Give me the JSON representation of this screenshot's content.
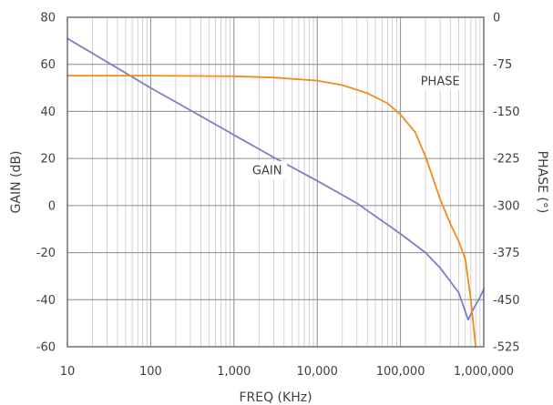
{
  "chart_data": {
    "type": "line",
    "title": "",
    "xlabel": "FREQ (KHz)",
    "ylabel": "GAIN (dB)",
    "y2label": "PHASE (°)",
    "xscale": "log",
    "xlim": [
      10,
      1000000
    ],
    "ylim": [
      -60,
      80
    ],
    "y2lim": [
      -525,
      0
    ],
    "grid": true,
    "xticks": [
      10,
      100,
      1000,
      10000,
      100000,
      1000000
    ],
    "xtick_labels": [
      "10",
      "100",
      "1,000",
      "10,000",
      "100,000",
      "1,000,000"
    ],
    "yticks": [
      -60,
      -40,
      -20,
      0,
      20,
      40,
      60,
      80
    ],
    "ytick_labels": [
      "-60",
      "-40",
      "-20",
      "0",
      "20",
      "40",
      "60",
      "80"
    ],
    "y2ticks": [
      -525,
      -450,
      -375,
      -300,
      -225,
      -150,
      -75,
      0
    ],
    "y2tick_labels": [
      "-525",
      "-450",
      "-375",
      "-300",
      "-225",
      "-150",
      "-75",
      "0"
    ],
    "series": [
      {
        "name": "GAIN",
        "axis": "left",
        "color": "#7b7fc4",
        "x": [
          10,
          30,
          100,
          300,
          1000,
          3000,
          10000,
          30000,
          100000,
          200000,
          300000,
          500000,
          650000,
          750000,
          900000,
          1000000
        ],
        "y": [
          71,
          61,
          50,
          40.5,
          30,
          20.5,
          10.5,
          1,
          -12,
          -20,
          -26.5,
          -37,
          -48.5,
          -44,
          -39,
          -35.5
        ]
      },
      {
        "name": "PHASE",
        "axis": "right",
        "color": "#f08c1a",
        "x": [
          10,
          100,
          1000,
          3000,
          10000,
          20000,
          40000,
          70000,
          100000,
          150000,
          200000,
          300000,
          400000,
          500000,
          600000,
          700000,
          800000
        ],
        "y": [
          -93,
          -93,
          -94,
          -96,
          -101,
          -108,
          -121,
          -137,
          -155,
          -183,
          -222,
          -290,
          -330,
          -357,
          -385,
          -450,
          -525
        ]
      }
    ],
    "annotations": [
      {
        "text": "PHASE",
        "x": 300000,
        "y": 53
      },
      {
        "text": "GAIN",
        "x": 2500,
        "y": 15
      }
    ]
  }
}
